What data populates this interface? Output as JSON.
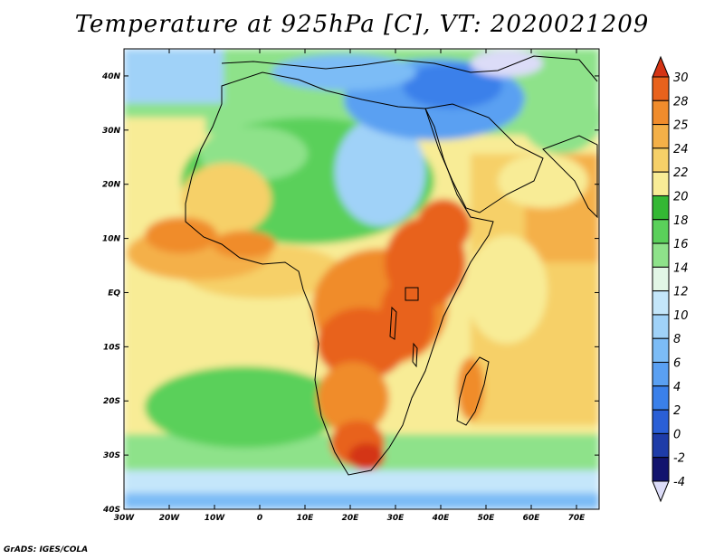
{
  "title": "Temperature at 925hPa [C], VT: 2020021209",
  "credit": "GrADS: IGES/COLA",
  "map": {
    "lon_range": [
      -30,
      75
    ],
    "lat_range": [
      -40,
      45
    ],
    "lon_ticks": [
      {
        "value": -30,
        "label": "30W"
      },
      {
        "value": -20,
        "label": "20W"
      },
      {
        "value": -10,
        "label": "10W"
      },
      {
        "value": 0,
        "label": "0"
      },
      {
        "value": 10,
        "label": "10E"
      },
      {
        "value": 20,
        "label": "20E"
      },
      {
        "value": 30,
        "label": "30E"
      },
      {
        "value": 40,
        "label": "40E"
      },
      {
        "value": 50,
        "label": "50E"
      },
      {
        "value": 60,
        "label": "60E"
      },
      {
        "value": 70,
        "label": "70E"
      }
    ],
    "lat_ticks": [
      {
        "value": 40,
        "label": "40N"
      },
      {
        "value": 30,
        "label": "30N"
      },
      {
        "value": 20,
        "label": "20N"
      },
      {
        "value": 10,
        "label": "10N"
      },
      {
        "value": 0,
        "label": "EQ"
      },
      {
        "value": -10,
        "label": "10S"
      },
      {
        "value": -20,
        "label": "20S"
      },
      {
        "value": -30,
        "label": "30S"
      },
      {
        "value": -40,
        "label": "40S"
      }
    ]
  },
  "colorbar": {
    "levels": [
      "-4",
      "-2",
      "0",
      "2",
      "4",
      "6",
      "8",
      "10",
      "12",
      "14",
      "16",
      "18",
      "20",
      "22",
      "24",
      "25",
      "28",
      "30"
    ],
    "colors": [
      "#dcdcf8",
      "#12146e",
      "#1e3ca8",
      "#2a5fd6",
      "#3a80ea",
      "#5aa0f2",
      "#7cbcf6",
      "#a0d2f8",
      "#c4e6fa",
      "#e2f6e6",
      "#8ee28a",
      "#5ad05a",
      "#34b834",
      "#f8ec96",
      "#f6d068",
      "#f4b048",
      "#f08c2c",
      "#e8621c",
      "#d43414"
    ]
  }
}
